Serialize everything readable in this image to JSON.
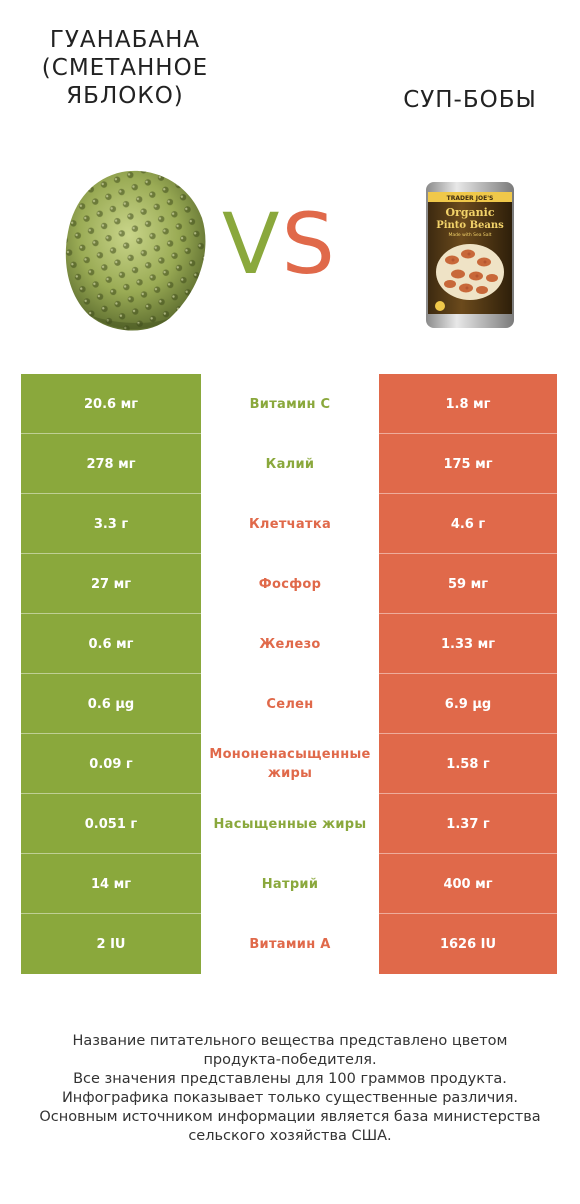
{
  "left_product": {
    "title_lines": [
      "ГУАНАБАНА",
      "(СМЕТАННОЕ",
      "ЯБЛОКО)"
    ],
    "color": "#8aa83c",
    "icon": "soursop-fruit-icon"
  },
  "right_product": {
    "title_lines": [
      "СУП-БОБЫ"
    ],
    "color": "#e0694a",
    "icon": "pinto-beans-can-icon",
    "can_label": {
      "brand": "TRADER JOE'S",
      "line1": "Organic",
      "line2": "Pinto Beans",
      "line3": "Made with Sea Salt"
    }
  },
  "vs": {
    "v": "V",
    "s": "S"
  },
  "rows": [
    {
      "left": "20.6 мг",
      "name": "Витамин C",
      "right": "1.8 мг",
      "winner": "left"
    },
    {
      "left": "278 мг",
      "name": "Калий",
      "right": "175 мг",
      "winner": "left"
    },
    {
      "left": "3.3 г",
      "name": "Клетчатка",
      "right": "4.6 г",
      "winner": "right"
    },
    {
      "left": "27 мг",
      "name": "Фосфор",
      "right": "59 мг",
      "winner": "right"
    },
    {
      "left": "0.6 мг",
      "name": "Железо",
      "right": "1.33 мг",
      "winner": "right"
    },
    {
      "left": "0.6 µg",
      "name": "Селен",
      "right": "6.9 µg",
      "winner": "right"
    },
    {
      "left": "0.09 г",
      "name": "Мононенасыщенные жиры",
      "right": "1.58 г",
      "winner": "right"
    },
    {
      "left": "0.051 г",
      "name": "Насыщенные жиры",
      "right": "1.37 г",
      "winner": "left"
    },
    {
      "left": "14 мг",
      "name": "Натрий",
      "right": "400 мг",
      "winner": "left"
    },
    {
      "left": "2 IU",
      "name": "Витамин A",
      "right": "1626 IU",
      "winner": "right"
    }
  ],
  "footer_lines": [
    "Название питательного вещества представлено цветом",
    "продукта-победителя.",
    "Все значения представлены для 100 граммов продукта.",
    "Инфографика показывает только существенные различия.",
    "Основным источником информации является база министерства",
    "сельского хозяйства США."
  ]
}
